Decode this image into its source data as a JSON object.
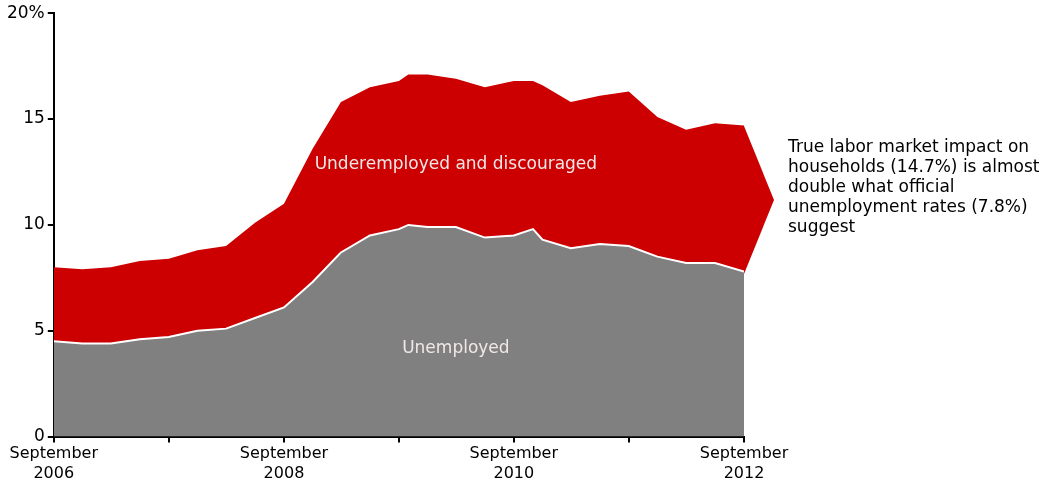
{
  "chart_data": {
    "type": "area",
    "stacked": true,
    "x": [
      "2006-09",
      "2006-12",
      "2007-03",
      "2007-06",
      "2007-09",
      "2007-12",
      "2008-03",
      "2008-06",
      "2008-09",
      "2008-12",
      "2009-03",
      "2009-06",
      "2009-09",
      "2009-10",
      "2009-12",
      "2010-03",
      "2010-06",
      "2010-09",
      "2010-11",
      "2010-12",
      "2011-03",
      "2011-06",
      "2011-09",
      "2011-12",
      "2012-03",
      "2012-06",
      "2012-09"
    ],
    "series": [
      {
        "name": "Unemployed",
        "color": "#808080",
        "values": [
          4.5,
          4.4,
          4.4,
          4.6,
          4.7,
          5.0,
          5.1,
          5.6,
          6.1,
          7.3,
          8.7,
          9.5,
          9.8,
          10.0,
          9.9,
          9.9,
          9.4,
          9.5,
          9.8,
          9.3,
          8.9,
          9.1,
          9.0,
          8.5,
          8.2,
          8.2,
          7.8
        ]
      },
      {
        "name": "Underemployed and discouraged",
        "color": "#cc0000",
        "values": [
          3.5,
          3.5,
          3.6,
          3.7,
          3.7,
          3.8,
          3.9,
          4.5,
          4.9,
          6.3,
          7.1,
          7.0,
          7.0,
          7.1,
          7.2,
          7.0,
          7.1,
          7.3,
          7.0,
          7.3,
          6.9,
          7.0,
          7.3,
          6.6,
          6.3,
          6.6,
          6.9
        ]
      }
    ],
    "xlim": [
      "2006-09",
      "2012-09"
    ],
    "xticks": [
      {
        "value": "2006-09",
        "label": "September\n2006"
      },
      {
        "value": "2007-09",
        "label": null
      },
      {
        "value": "2008-09",
        "label": "September\n2008"
      },
      {
        "value": "2009-09",
        "label": null
      },
      {
        "value": "2010-09",
        "label": "September\n2010"
      },
      {
        "value": "2011-09",
        "label": null
      },
      {
        "value": "2012-09",
        "label": "September\n2012"
      }
    ],
    "ylim": [
      0,
      20
    ],
    "yticks": [
      0,
      5,
      10,
      15,
      {
        "value": 20,
        "label": "20%"
      }
    ],
    "grid": false,
    "legend": false,
    "annotations": [
      "True labor market impact on households (14.7%) is almost double what official unemployment rates (7.8%) suggest"
    ]
  }
}
